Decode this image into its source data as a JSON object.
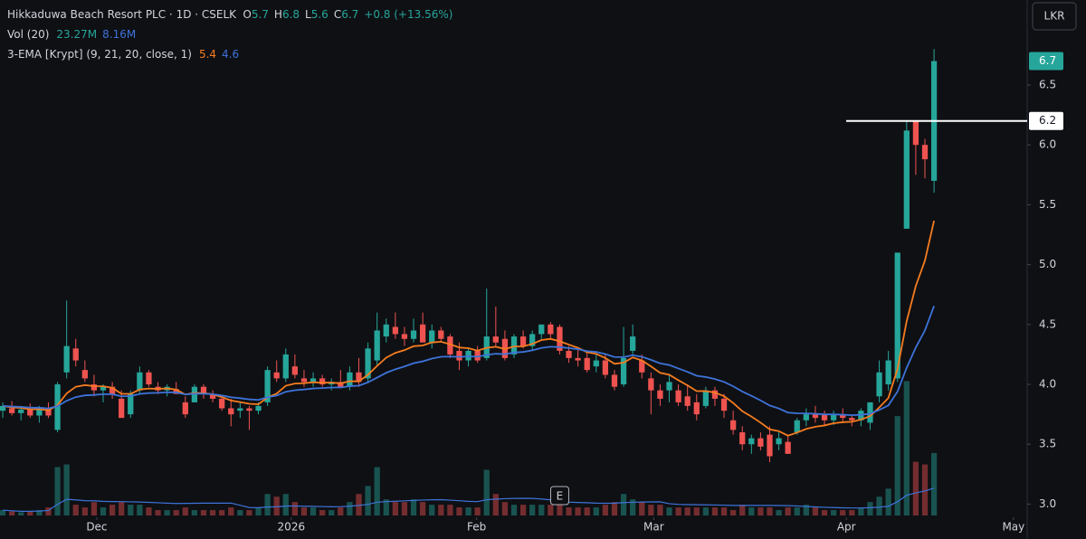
{
  "chart_data": {
    "type": "candlestick",
    "title": "Hikkaduwa Beach Resort PLC · 1D · CSELK",
    "ohlc_legend": [
      {
        "label": "O",
        "value": "5.7"
      },
      {
        "label": "H",
        "value": "6.8"
      },
      {
        "label": "L",
        "value": "5.6"
      },
      {
        "label": "C",
        "value": "6.7"
      }
    ],
    "change": "+0.8 (+13.56%)",
    "volume_legend": {
      "name": "Vol (20)",
      "values": [
        "23.27M",
        "8.16M"
      ]
    },
    "indicator_legend": {
      "name": "3-EMA [Krypt] (9, 21, 20, close, 1)",
      "values": [
        "5.4",
        "4.6"
      ]
    },
    "currency": "LKR",
    "event_marker": {
      "x": 61,
      "label": "E"
    },
    "hline": 6.2,
    "up_color": "#26a69a",
    "down_color": "#ef5350",
    "ema_colors": [
      "#f57c1f",
      "#3d73d9"
    ],
    "ema_periods": [
      9,
      21
    ],
    "vol_ma_color": "#3d73d9",
    "vol_ma_period": 20,
    "xlim": [
      -0.3,
      112.2
    ],
    "xticks": [
      {
        "value": 10.3,
        "label": "Dec"
      },
      {
        "value": 31.6,
        "label": "2026"
      },
      {
        "value": 51.9,
        "label": "Feb"
      },
      {
        "value": 71.3,
        "label": "Mar"
      },
      {
        "value": 92.4,
        "label": "Apr"
      },
      {
        "value": 110.7,
        "label": "May"
      }
    ],
    "ylim": [
      2.89,
      7.21
    ],
    "yticks": [
      {
        "value": 3,
        "label": "3.0"
      },
      3.5,
      {
        "value": 4,
        "label": "4.0"
      },
      4.5,
      {
        "value": 5,
        "label": "5.0"
      },
      5.5,
      {
        "value": 6,
        "label": "6.0"
      },
      6.5
    ],
    "candles": [
      [
        3.78,
        3.85,
        3.72,
        3.82,
        2
      ],
      [
        3.8,
        3.86,
        3.74,
        3.76,
        1.5
      ],
      [
        3.76,
        3.82,
        3.7,
        3.79,
        1.2
      ],
      [
        3.79,
        3.84,
        3.72,
        3.74,
        1.5
      ],
      [
        3.74,
        3.82,
        3.68,
        3.8,
        2
      ],
      [
        3.8,
        3.85,
        3.72,
        3.74,
        3
      ],
      [
        3.62,
        4.02,
        3.6,
        4.0,
        18
      ],
      [
        4.1,
        4.7,
        4.05,
        4.32,
        19
      ],
      [
        4.3,
        4.38,
        4.15,
        4.2,
        4
      ],
      [
        4.12,
        4.2,
        4.02,
        4.05,
        3
      ],
      [
        4.0,
        4.08,
        3.9,
        3.95,
        5
      ],
      [
        3.95,
        4.0,
        3.85,
        3.98,
        3
      ],
      [
        3.98,
        4.02,
        3.88,
        3.92,
        4
      ],
      [
        3.88,
        3.95,
        3.72,
        3.72,
        5
      ],
      [
        3.75,
        3.95,
        3.72,
        3.92,
        4
      ],
      [
        3.95,
        4.15,
        3.92,
        4.1,
        4
      ],
      [
        4.1,
        4.12,
        3.98,
        4.0,
        3
      ],
      [
        3.98,
        4.02,
        3.92,
        3.95,
        2
      ],
      [
        3.95,
        4.0,
        3.9,
        3.98,
        2
      ],
      [
        3.96,
        4.02,
        3.92,
        3.92,
        2
      ],
      [
        3.85,
        3.9,
        3.72,
        3.75,
        3
      ],
      [
        3.85,
        4.0,
        3.85,
        3.98,
        2
      ],
      [
        3.98,
        4.0,
        3.88,
        3.92,
        2
      ],
      [
        3.92,
        3.95,
        3.85,
        3.88,
        2
      ],
      [
        3.88,
        3.9,
        3.78,
        3.8,
        2
      ],
      [
        3.8,
        3.88,
        3.65,
        3.75,
        3
      ],
      [
        3.78,
        3.85,
        3.72,
        3.8,
        2
      ],
      [
        3.8,
        3.82,
        3.62,
        3.78,
        2
      ],
      [
        3.78,
        3.85,
        3.75,
        3.82,
        3
      ],
      [
        3.85,
        4.15,
        3.82,
        4.12,
        8
      ],
      [
        4.1,
        4.2,
        4.02,
        4.05,
        7
      ],
      [
        4.05,
        4.3,
        4.02,
        4.25,
        8
      ],
      [
        4.15,
        4.25,
        4.05,
        4.08,
        5
      ],
      [
        4.05,
        4.12,
        3.98,
        4.02,
        3
      ],
      [
        4.02,
        4.1,
        3.98,
        4.05,
        3
      ],
      [
        4.05,
        4.08,
        3.98,
        4.0,
        2
      ],
      [
        4.0,
        4.05,
        3.95,
        4.02,
        2
      ],
      [
        4.02,
        4.12,
        3.98,
        3.98,
        3
      ],
      [
        3.98,
        4.15,
        3.95,
        4.1,
        5
      ],
      [
        4.1,
        4.22,
        3.98,
        4.02,
        8
      ],
      [
        4.05,
        4.35,
        4.02,
        4.3,
        11
      ],
      [
        4.2,
        4.6,
        4.15,
        4.45,
        18
      ],
      [
        4.4,
        4.55,
        4.35,
        4.5,
        6
      ],
      [
        4.48,
        4.6,
        4.38,
        4.42,
        5
      ],
      [
        4.42,
        4.48,
        4.32,
        4.38,
        5
      ],
      [
        4.38,
        4.55,
        4.35,
        4.45,
        6
      ],
      [
        4.5,
        4.6,
        4.35,
        4.35,
        5
      ],
      [
        4.35,
        4.5,
        4.3,
        4.45,
        4
      ],
      [
        4.45,
        4.48,
        4.35,
        4.38,
        4
      ],
      [
        4.4,
        4.42,
        4.22,
        4.25,
        4
      ],
      [
        4.28,
        4.35,
        4.12,
        4.2,
        3
      ],
      [
        4.2,
        4.3,
        4.15,
        4.28,
        3
      ],
      [
        4.28,
        4.32,
        4.18,
        4.2,
        3
      ],
      [
        4.22,
        4.8,
        4.2,
        4.4,
        17
      ],
      [
        4.4,
        4.65,
        4.32,
        4.35,
        8
      ],
      [
        4.38,
        4.45,
        4.2,
        4.22,
        5
      ],
      [
        4.25,
        4.42,
        4.22,
        4.4,
        4
      ],
      [
        4.4,
        4.45,
        4.3,
        4.32,
        4
      ],
      [
        4.32,
        4.45,
        4.28,
        4.42,
        4
      ],
      [
        4.42,
        4.5,
        4.38,
        4.5,
        4
      ],
      [
        4.5,
        4.52,
        4.38,
        4.42,
        4
      ],
      [
        4.48,
        4.5,
        4.25,
        4.28,
        4
      ],
      [
        4.28,
        4.32,
        4.18,
        4.22,
        3
      ],
      [
        4.22,
        4.3,
        4.15,
        4.2,
        3
      ],
      [
        4.22,
        4.28,
        4.1,
        4.12,
        3
      ],
      [
        4.15,
        4.25,
        4.1,
        4.2,
        3
      ],
      [
        4.2,
        4.25,
        4.05,
        4.08,
        4
      ],
      [
        4.08,
        4.12,
        3.95,
        3.98,
        5
      ],
      [
        4.0,
        4.48,
        3.98,
        4.22,
        8
      ],
      [
        4.28,
        4.5,
        4.25,
        4.4,
        6
      ],
      [
        4.2,
        4.25,
        4.05,
        4.1,
        5
      ],
      [
        4.05,
        4.1,
        3.75,
        3.95,
        4
      ],
      [
        3.95,
        4.0,
        3.82,
        3.88,
        4
      ],
      [
        3.95,
        4.08,
        3.85,
        4.02,
        3
      ],
      [
        3.95,
        4.0,
        3.82,
        3.85,
        3
      ],
      [
        3.9,
        4.0,
        3.78,
        3.82,
        3
      ],
      [
        3.85,
        3.92,
        3.7,
        3.75,
        3
      ],
      [
        3.82,
        3.98,
        3.8,
        3.95,
        3
      ],
      [
        3.95,
        3.98,
        3.82,
        3.88,
        3
      ],
      [
        3.88,
        3.92,
        3.72,
        3.78,
        3
      ],
      [
        3.7,
        3.78,
        3.58,
        3.62,
        2
      ],
      [
        3.6,
        3.65,
        3.45,
        3.5,
        4
      ],
      [
        3.5,
        3.58,
        3.42,
        3.55,
        3
      ],
      [
        3.55,
        3.6,
        3.45,
        3.48,
        3
      ],
      [
        3.58,
        3.65,
        3.35,
        3.4,
        3
      ],
      [
        3.5,
        3.6,
        3.45,
        3.55,
        2
      ],
      [
        3.52,
        3.58,
        3.42,
        3.42,
        3
      ],
      [
        3.6,
        3.72,
        3.58,
        3.7,
        3
      ],
      [
        3.7,
        3.8,
        3.65,
        3.75,
        4
      ],
      [
        3.75,
        3.82,
        3.68,
        3.72,
        3
      ],
      [
        3.75,
        3.78,
        3.65,
        3.7,
        2
      ],
      [
        3.7,
        3.78,
        3.66,
        3.75,
        2
      ],
      [
        3.75,
        3.8,
        3.68,
        3.72,
        2
      ],
      [
        3.72,
        3.75,
        3.65,
        3.7,
        2
      ],
      [
        3.7,
        3.8,
        3.65,
        3.78,
        3
      ],
      [
        3.68,
        3.85,
        3.62,
        3.85,
        5
      ],
      [
        3.9,
        4.2,
        3.85,
        4.1,
        7
      ],
      [
        4.0,
        4.28,
        3.95,
        4.2,
        10
      ],
      [
        4.05,
        5.1,
        4.02,
        5.1,
        37
      ],
      [
        5.3,
        6.2,
        5.3,
        6.12,
        50
      ],
      [
        6.2,
        6.2,
        5.75,
        6.0,
        20
      ],
      [
        6.0,
        6.05,
        5.72,
        5.88,
        19
      ],
      [
        5.7,
        6.8,
        5.6,
        6.7,
        23.27
      ]
    ]
  }
}
